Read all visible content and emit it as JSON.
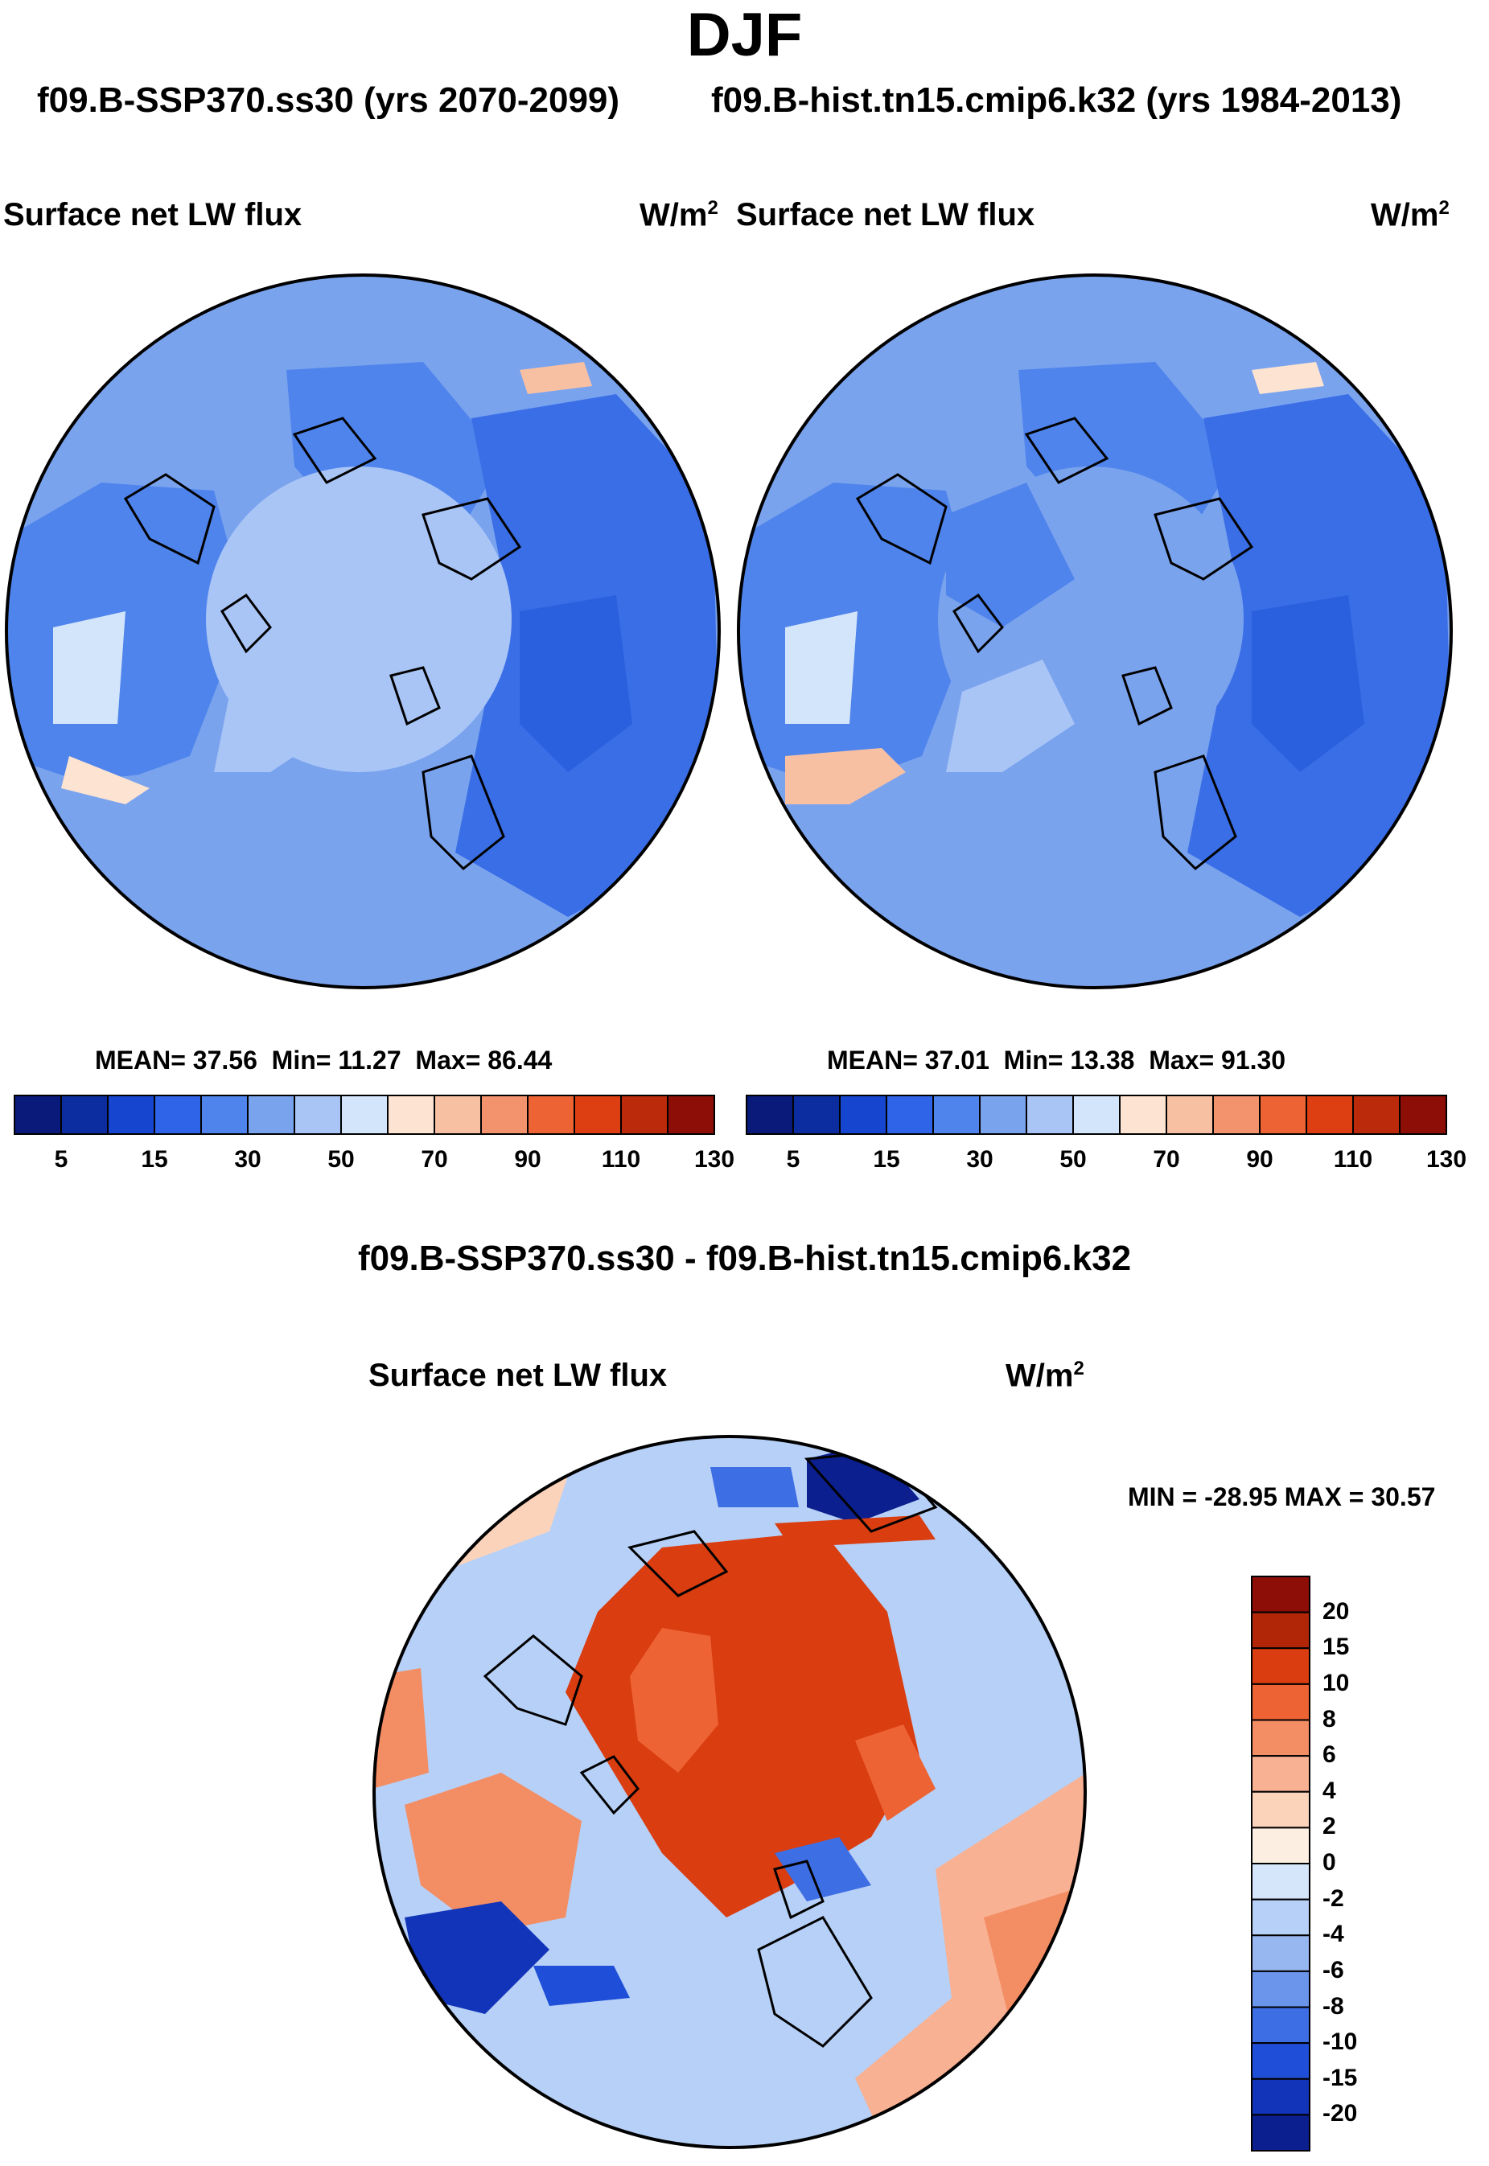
{
  "season": "DJF",
  "subtitle_left": "f09.B-SSP370.ss30 (yrs 2070-2099)",
  "subtitle_right": "f09.B-hist.tn15.cmip6.k32 (yrs 1984-2013)",
  "diff_title": "f09.B-SSP370.ss30 - f09.B-hist.tn15.cmip6.k32",
  "chart_data": [
    {
      "type": "heatmap",
      "projection": "north polar stereographic",
      "title": "Surface net LW flux",
      "units_base": "W/m",
      "units_exp": "2",
      "stats": {
        "mean_label": "MEAN=",
        "mean": "37.56",
        "min_label": "Min=",
        "min": "11.27",
        "max_label": "Max=",
        "max": "86.44"
      },
      "colorbar": {
        "orientation": "horizontal",
        "tick_labels": [
          "5",
          "15",
          "30",
          "50",
          "70",
          "90",
          "110",
          "130"
        ],
        "colors": [
          "#0a1a7a",
          "#0b2da0",
          "#1646cf",
          "#2f63e8",
          "#4f84ec",
          "#7aa3ee",
          "#a9c5f6",
          "#d3e5fb",
          "#fde3d1",
          "#f8c0a3",
          "#f3936d",
          "#ed6333",
          "#de3f12",
          "#bb2a0a",
          "#8c0e06"
        ]
      }
    },
    {
      "type": "heatmap",
      "projection": "north polar stereographic",
      "title": "Surface net LW flux",
      "units_base": "W/m",
      "units_exp": "2",
      "stats": {
        "mean_label": "MEAN=",
        "mean": "37.01",
        "min_label": "Min=",
        "min": "13.38",
        "max_label": "Max=",
        "max": "91.30"
      },
      "colorbar": {
        "orientation": "horizontal",
        "tick_labels": [
          "5",
          "15",
          "30",
          "50",
          "70",
          "90",
          "110",
          "130"
        ],
        "colors": [
          "#0a1a7a",
          "#0b2da0",
          "#1646cf",
          "#2f63e8",
          "#4f84ec",
          "#7aa3ee",
          "#a9c5f6",
          "#d3e5fb",
          "#fde3d1",
          "#f8c0a3",
          "#f3936d",
          "#ed6333",
          "#de3f12",
          "#bb2a0a",
          "#8c0e06"
        ]
      }
    },
    {
      "type": "heatmap",
      "projection": "north polar stereographic",
      "title": "Surface net LW flux",
      "units_base": "W/m",
      "units_exp": "2",
      "stats_text": "MIN = -28.95 MAX =  30.57",
      "min": -28.95,
      "max": 30.57,
      "colorbar": {
        "orientation": "vertical",
        "tick_labels": [
          "20",
          "15",
          "10",
          "8",
          "6",
          "4",
          "2",
          "0",
          "-2",
          "-4",
          "-6",
          "-8",
          "-10",
          "-15",
          "-20"
        ],
        "colors": [
          "#8c0e06",
          "#b22608",
          "#d93d10",
          "#ed6333",
          "#f38d63",
          "#f8b192",
          "#fbd3bb",
          "#fdeee2",
          "#d5e6fb",
          "#b7d0f7",
          "#97b7f1",
          "#6b95ea",
          "#3e6ee4",
          "#1f4fd8",
          "#1234b8",
          "#0b1f8f"
        ]
      }
    }
  ]
}
